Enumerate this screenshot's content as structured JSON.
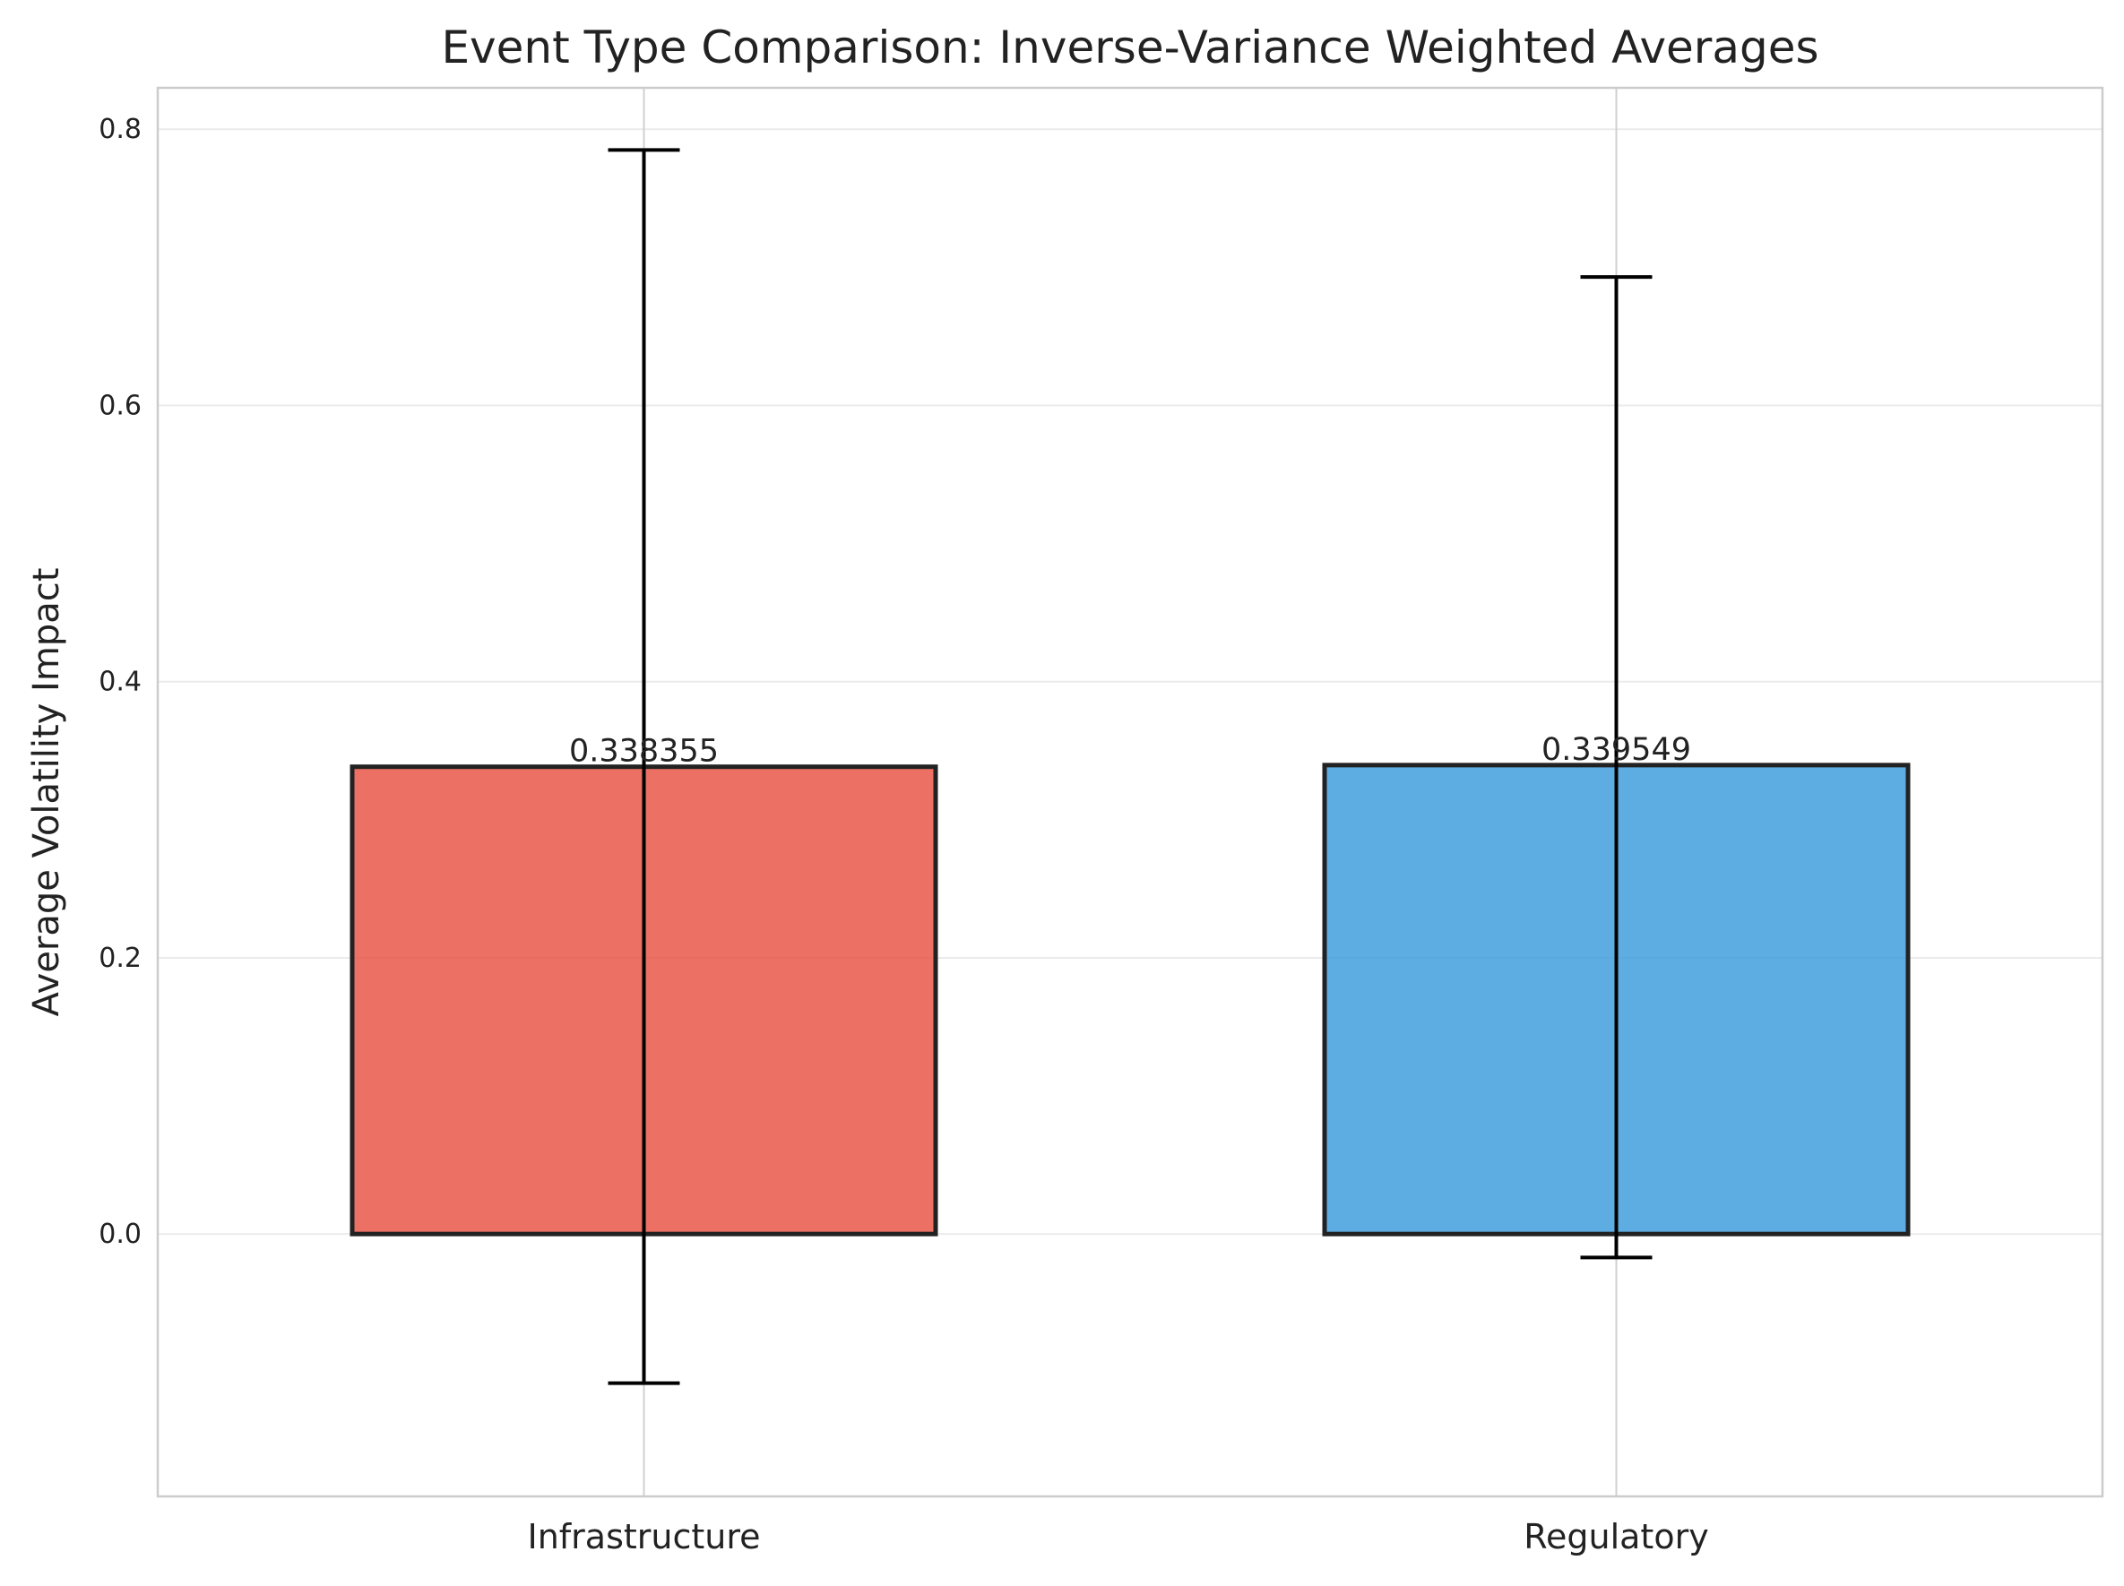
{
  "chart_data": {
    "type": "bar",
    "title": "Event Type Comparison: Inverse-Variance Weighted Averages",
    "xlabel": "",
    "ylabel": "Average Volatility Impact",
    "categories": [
      "Infrastructure",
      "Regulatory"
    ],
    "values": [
      0.338355,
      0.339549
    ],
    "value_labels": [
      "0.338355",
      "0.339549"
    ],
    "error_low": [
      -0.108,
      -0.017
    ],
    "error_high": [
      0.785,
      0.693
    ],
    "colors": [
      "#e74c3c",
      "#3498db"
    ],
    "ylim": [
      -0.19,
      0.83
    ],
    "yticks": [
      0.0,
      0.2,
      0.4,
      0.6,
      0.8
    ],
    "ytick_labels": [
      "0.0",
      "0.2",
      "0.4",
      "0.6",
      "0.8"
    ],
    "grid": true,
    "legend": "none"
  }
}
